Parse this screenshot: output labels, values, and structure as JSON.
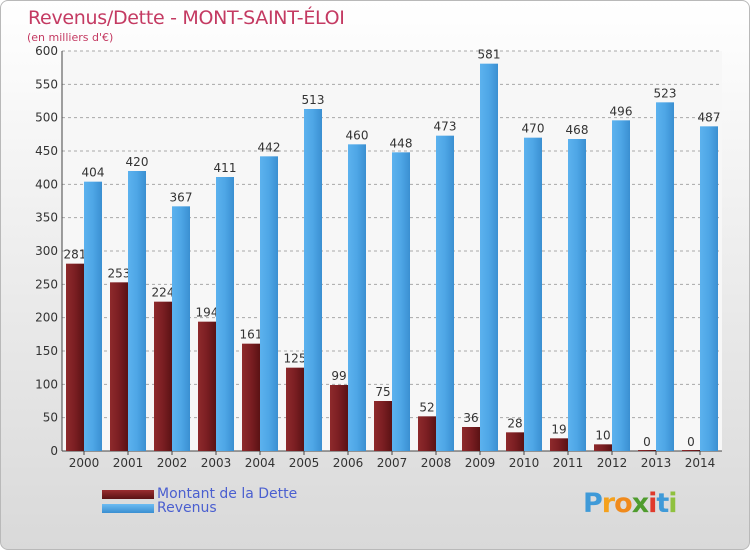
{
  "chart_data": {
    "type": "bar",
    "title": "Revenus/Dette - MONT-SAINT-ÉLOI",
    "subtitle": "(en milliers d'€)",
    "categories": [
      "2000",
      "2001",
      "2002",
      "2003",
      "2004",
      "2005",
      "2006",
      "2007",
      "2008",
      "2009",
      "2010",
      "2011",
      "2012",
      "2013",
      "2014"
    ],
    "series": [
      {
        "name": "Montant de la Dette",
        "color": "#7a1e22",
        "values": [
          281,
          253,
          224,
          194,
          161,
          125,
          99,
          75,
          52,
          36,
          28,
          19,
          10,
          0,
          0
        ]
      },
      {
        "name": "Revenus",
        "color": "#4ea6e6",
        "values": [
          404,
          420,
          367,
          411,
          442,
          513,
          460,
          448,
          473,
          581,
          470,
          468,
          496,
          523,
          487
        ]
      }
    ],
    "yticks": [
      0,
      50,
      100,
      150,
      200,
      250,
      300,
      350,
      400,
      450,
      500,
      550,
      600
    ],
    "ylim": [
      0,
      600
    ],
    "grid": true,
    "legend": "bottom-left"
  },
  "logo": {
    "letters": [
      "P",
      "r",
      "o",
      "x",
      "i",
      "t",
      "i"
    ],
    "colors": [
      "#3f9ad8",
      "#f4a11d",
      "#f08a1c",
      "#4f9c2e",
      "#e03a2c",
      "#3f9ad8",
      "#8fc13e"
    ]
  }
}
